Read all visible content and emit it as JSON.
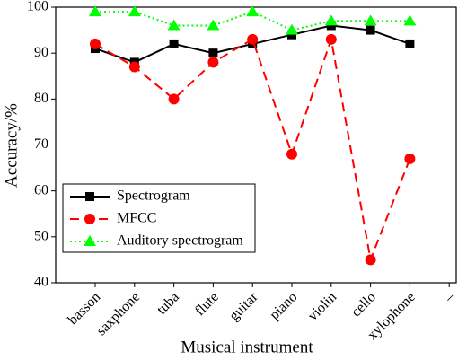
{
  "chart_data": {
    "type": "line",
    "xlabel": "Musical instrument",
    "ylabel": "Accuracy/%",
    "categories": [
      "basson",
      "saxphone",
      "tuba",
      "flute",
      "guitar",
      "piano",
      "violin",
      "cello",
      "xylophone",
      "–"
    ],
    "series": [
      {
        "name": "Spectrogram",
        "color": "#000000",
        "marker": "square",
        "linestyle": "solid",
        "values": [
          91,
          88,
          92,
          90,
          92,
          94,
          96,
          95,
          92,
          null
        ]
      },
      {
        "name": "MFCC",
        "color": "#ff0000",
        "marker": "circle",
        "linestyle": "dashed",
        "values": [
          92,
          87,
          80,
          88,
          93,
          68,
          93,
          45,
          67,
          null
        ]
      },
      {
        "name": "Auditory spectrogram",
        "color": "#00ff00",
        "marker": "triangle",
        "linestyle": "dotted",
        "values": [
          99,
          99,
          96,
          96,
          99,
          95,
          97,
          97,
          97,
          null
        ]
      }
    ],
    "ylim": [
      40,
      100
    ],
    "yticks": [
      40,
      50,
      60,
      70,
      80,
      90,
      100
    ],
    "legend": "lower left",
    "grid": false
  }
}
